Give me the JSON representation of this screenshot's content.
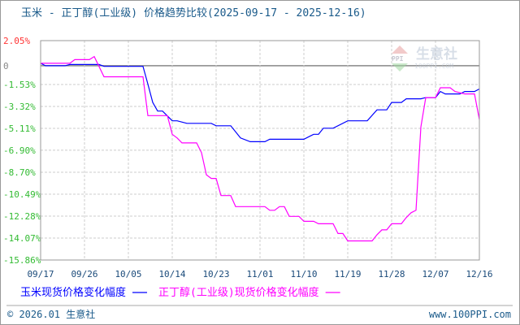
{
  "chart_data": {
    "type": "line",
    "title": "玉米 - 正丁醇(工业级) 价格趋势比较(2025-09-17 - 2025-12-16)",
    "xlim": [
      "2025-09-17",
      "2025-12-16"
    ],
    "ylim": [
      -15.86,
      2.05
    ],
    "grid": true,
    "legend_position": "bottom",
    "x_ticks": [
      "09/17",
      "09/26",
      "10/05",
      "10/14",
      "10/23",
      "11/01",
      "11/10",
      "11/19",
      "11/28",
      "12/07",
      "12/16"
    ],
    "y_ticks": [
      {
        "value": 2.05,
        "label": "2.05%",
        "color": "#ff3333"
      },
      {
        "value": 0,
        "label": "0",
        "color": "#888888"
      },
      {
        "value": -1.53,
        "label": "-1.53%",
        "color": "#33bb33"
      },
      {
        "value": -3.32,
        "label": "-3.32%",
        "color": "#33bb33"
      },
      {
        "value": -5.11,
        "label": "-5.11%",
        "color": "#33bb33"
      },
      {
        "value": -6.9,
        "label": "-6.90%",
        "color": "#33bb33"
      },
      {
        "value": -8.7,
        "label": "-8.70%",
        "color": "#33bb33"
      },
      {
        "value": -10.49,
        "label": "-10.49%",
        "color": "#33bb33"
      },
      {
        "value": -12.28,
        "label": "-12.28%",
        "color": "#33bb33"
      },
      {
        "value": -14.07,
        "label": "-14.07%",
        "color": "#33bb33"
      },
      {
        "value": -15.86,
        "label": "-15.86%",
        "color": "#33bb33"
      }
    ],
    "series": [
      {
        "name": "玉米现货价格变化幅度",
        "color": "#0000ff",
        "points": [
          [
            "2025-09-17",
            0.2
          ],
          [
            "2025-09-18",
            0
          ],
          [
            "2025-09-22",
            0
          ],
          [
            "2025-09-23",
            0.1
          ],
          [
            "2025-09-29",
            0.1
          ],
          [
            "2025-09-30",
            -0.05
          ],
          [
            "2025-10-08",
            -0.05
          ],
          [
            "2025-10-09",
            -1.5
          ],
          [
            "2025-10-10",
            -3.0
          ],
          [
            "2025-10-11",
            -3.7
          ],
          [
            "2025-10-12",
            -3.7
          ],
          [
            "2025-10-13",
            -4.1
          ],
          [
            "2025-10-14",
            -4.5
          ],
          [
            "2025-10-15",
            -4.5
          ],
          [
            "2025-10-17",
            -4.7
          ],
          [
            "2025-10-22",
            -4.7
          ],
          [
            "2025-10-23",
            -4.9
          ],
          [
            "2025-10-26",
            -4.9
          ],
          [
            "2025-10-28",
            -5.9
          ],
          [
            "2025-10-30",
            -6.2
          ],
          [
            "2025-11-02",
            -6.2
          ],
          [
            "2025-11-03",
            -6.0
          ],
          [
            "2025-11-10",
            -6.0
          ],
          [
            "2025-11-12",
            -5.6
          ],
          [
            "2025-11-13",
            -5.6
          ],
          [
            "2025-11-14",
            -5.1
          ],
          [
            "2025-11-16",
            -5.1
          ],
          [
            "2025-11-19",
            -4.5
          ],
          [
            "2025-11-23",
            -4.5
          ],
          [
            "2025-11-25",
            -3.6
          ],
          [
            "2025-11-27",
            -3.6
          ],
          [
            "2025-11-28",
            -3.0
          ],
          [
            "2025-11-30",
            -3.0
          ],
          [
            "2025-12-01",
            -2.7
          ],
          [
            "2025-12-04",
            -2.7
          ],
          [
            "2025-12-05",
            -2.6
          ],
          [
            "2025-12-07",
            -2.6
          ],
          [
            "2025-12-08",
            -2.1
          ],
          [
            "2025-12-09",
            -2.3
          ],
          [
            "2025-12-12",
            -2.3
          ],
          [
            "2025-12-13",
            -2.1
          ],
          [
            "2025-12-15",
            -2.1
          ],
          [
            "2025-12-16",
            -1.9
          ]
        ]
      },
      {
        "name": "正丁醇(工业级)现货价格变化幅度",
        "color": "#ff00ff",
        "points": [
          [
            "2025-09-17",
            0.2
          ],
          [
            "2025-09-23",
            0.2
          ],
          [
            "2025-09-24",
            0.5
          ],
          [
            "2025-09-27",
            0.5
          ],
          [
            "2025-09-28",
            0.75
          ],
          [
            "2025-09-30",
            -0.9
          ],
          [
            "2025-10-08",
            -0.9
          ],
          [
            "2025-10-09",
            -4.07
          ],
          [
            "2025-10-13",
            -4.07
          ],
          [
            "2025-10-14",
            -5.6
          ],
          [
            "2025-10-15",
            -5.9
          ],
          [
            "2025-10-16",
            -6.3
          ],
          [
            "2025-10-19",
            -6.3
          ],
          [
            "2025-10-20",
            -7.1
          ],
          [
            "2025-10-21",
            -8.9
          ],
          [
            "2025-10-22",
            -9.2
          ],
          [
            "2025-10-23",
            -9.2
          ],
          [
            "2025-10-24",
            -10.6
          ],
          [
            "2025-10-26",
            -10.6
          ],
          [
            "2025-10-27",
            -11.5
          ],
          [
            "2025-11-02",
            -11.5
          ],
          [
            "2025-11-03",
            -11.8
          ],
          [
            "2025-11-04",
            -11.8
          ],
          [
            "2025-11-05",
            -11.5
          ],
          [
            "2025-11-06",
            -11.5
          ],
          [
            "2025-11-07",
            -12.3
          ],
          [
            "2025-11-09",
            -12.3
          ],
          [
            "2025-11-10",
            -12.7
          ],
          [
            "2025-11-12",
            -12.7
          ],
          [
            "2025-11-13",
            -12.9
          ],
          [
            "2025-11-16",
            -12.9
          ],
          [
            "2025-11-17",
            -13.7
          ],
          [
            "2025-11-18",
            -13.7
          ],
          [
            "2025-11-19",
            -14.3
          ],
          [
            "2025-11-24",
            -14.3
          ],
          [
            "2025-11-25",
            -13.8
          ],
          [
            "2025-11-26",
            -13.4
          ],
          [
            "2025-11-27",
            -13.4
          ],
          [
            "2025-11-28",
            -12.9
          ],
          [
            "2025-11-30",
            -12.9
          ],
          [
            "2025-12-01",
            -12.4
          ],
          [
            "2025-12-02",
            -12.0
          ],
          [
            "2025-12-03",
            -11.8
          ],
          [
            "2025-12-04",
            -5.0
          ],
          [
            "2025-12-05",
            -2.6
          ],
          [
            "2025-12-07",
            -2.6
          ],
          [
            "2025-12-08",
            -1.8
          ],
          [
            "2025-12-10",
            -1.8
          ],
          [
            "2025-12-11",
            -2.1
          ],
          [
            "2025-12-13",
            -2.3
          ],
          [
            "2025-12-15",
            -2.3
          ],
          [
            "2025-12-16",
            -4.4
          ]
        ]
      }
    ]
  },
  "watermark": {
    "name": "生意社",
    "site": "100PPI.COM"
  },
  "footer": {
    "copyright": "© 2026.01 生意社",
    "url": "www.100PPI.com"
  }
}
